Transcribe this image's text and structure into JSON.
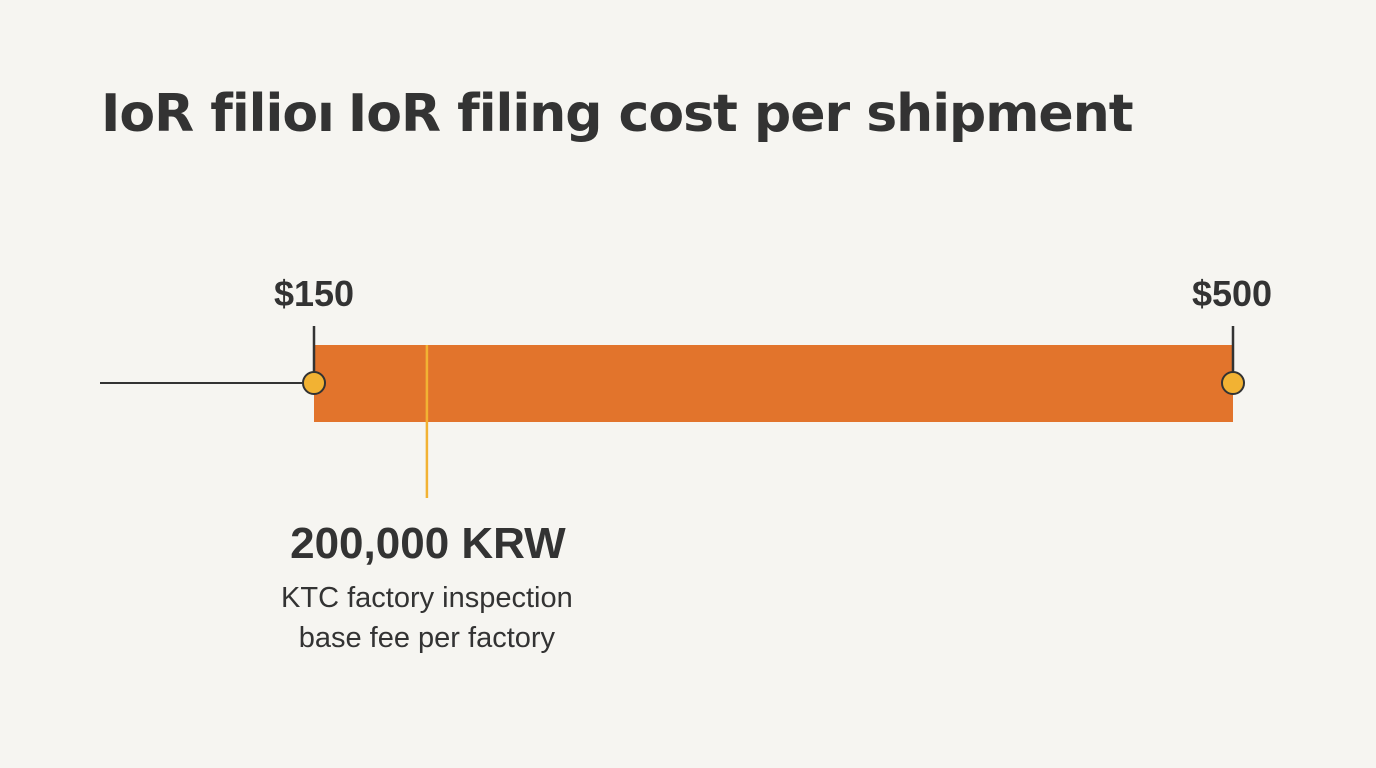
{
  "chart_data": {
    "type": "bar",
    "orientation": "horizontal",
    "title": "IoR filing cost per shipment",
    "title_fragment": "IoR filioı",
    "range": {
      "min": 150,
      "max": 500
    },
    "tick_labels": [
      "$150",
      "$500"
    ],
    "marker": {
      "value": 193,
      "label": "200,000 KRW",
      "note": [
        "KTC factory inspection",
        "base fee per factory"
      ]
    },
    "colors": {
      "bar": "#e2742c",
      "endpoint": "#f2b233",
      "marker_line": "#f2b233",
      "axis": "#333333",
      "background": "#f6f5f1"
    }
  }
}
